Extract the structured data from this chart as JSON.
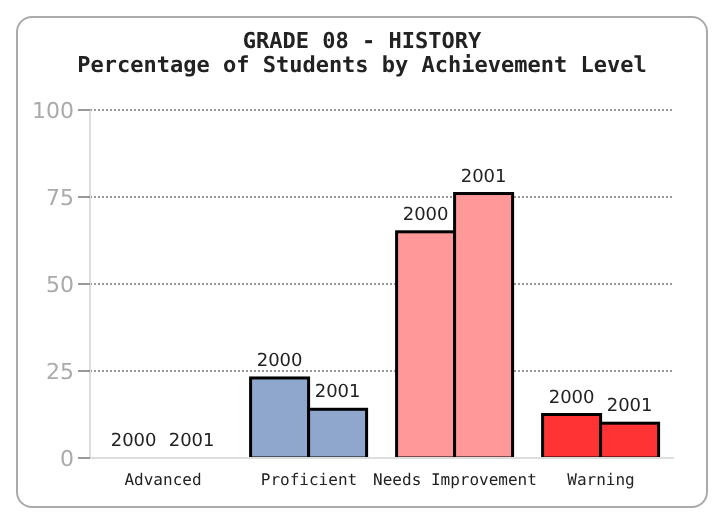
{
  "chart_data": {
    "type": "bar",
    "title": "GRADE 08 - HISTORY",
    "subtitle": "Percentage of Students by Achievement Level",
    "categories": [
      "Advanced",
      "Proficient",
      "Needs Improvement",
      "Warning"
    ],
    "series": [
      {
        "name": "2000",
        "colors": [
          "#8fa7cc",
          "#8fa7cc",
          "#ff9999",
          "#ff3333"
        ],
        "values": [
          0,
          23,
          65,
          12.5
        ]
      },
      {
        "name": "2001",
        "colors": [
          "#8fa7cc",
          "#8fa7cc",
          "#ff9999",
          "#ff3333"
        ],
        "values": [
          0,
          14,
          76,
          10
        ]
      }
    ],
    "ylim": [
      0,
      100
    ],
    "yticks": [
      0,
      25,
      50,
      75,
      100
    ],
    "grid": "y"
  }
}
